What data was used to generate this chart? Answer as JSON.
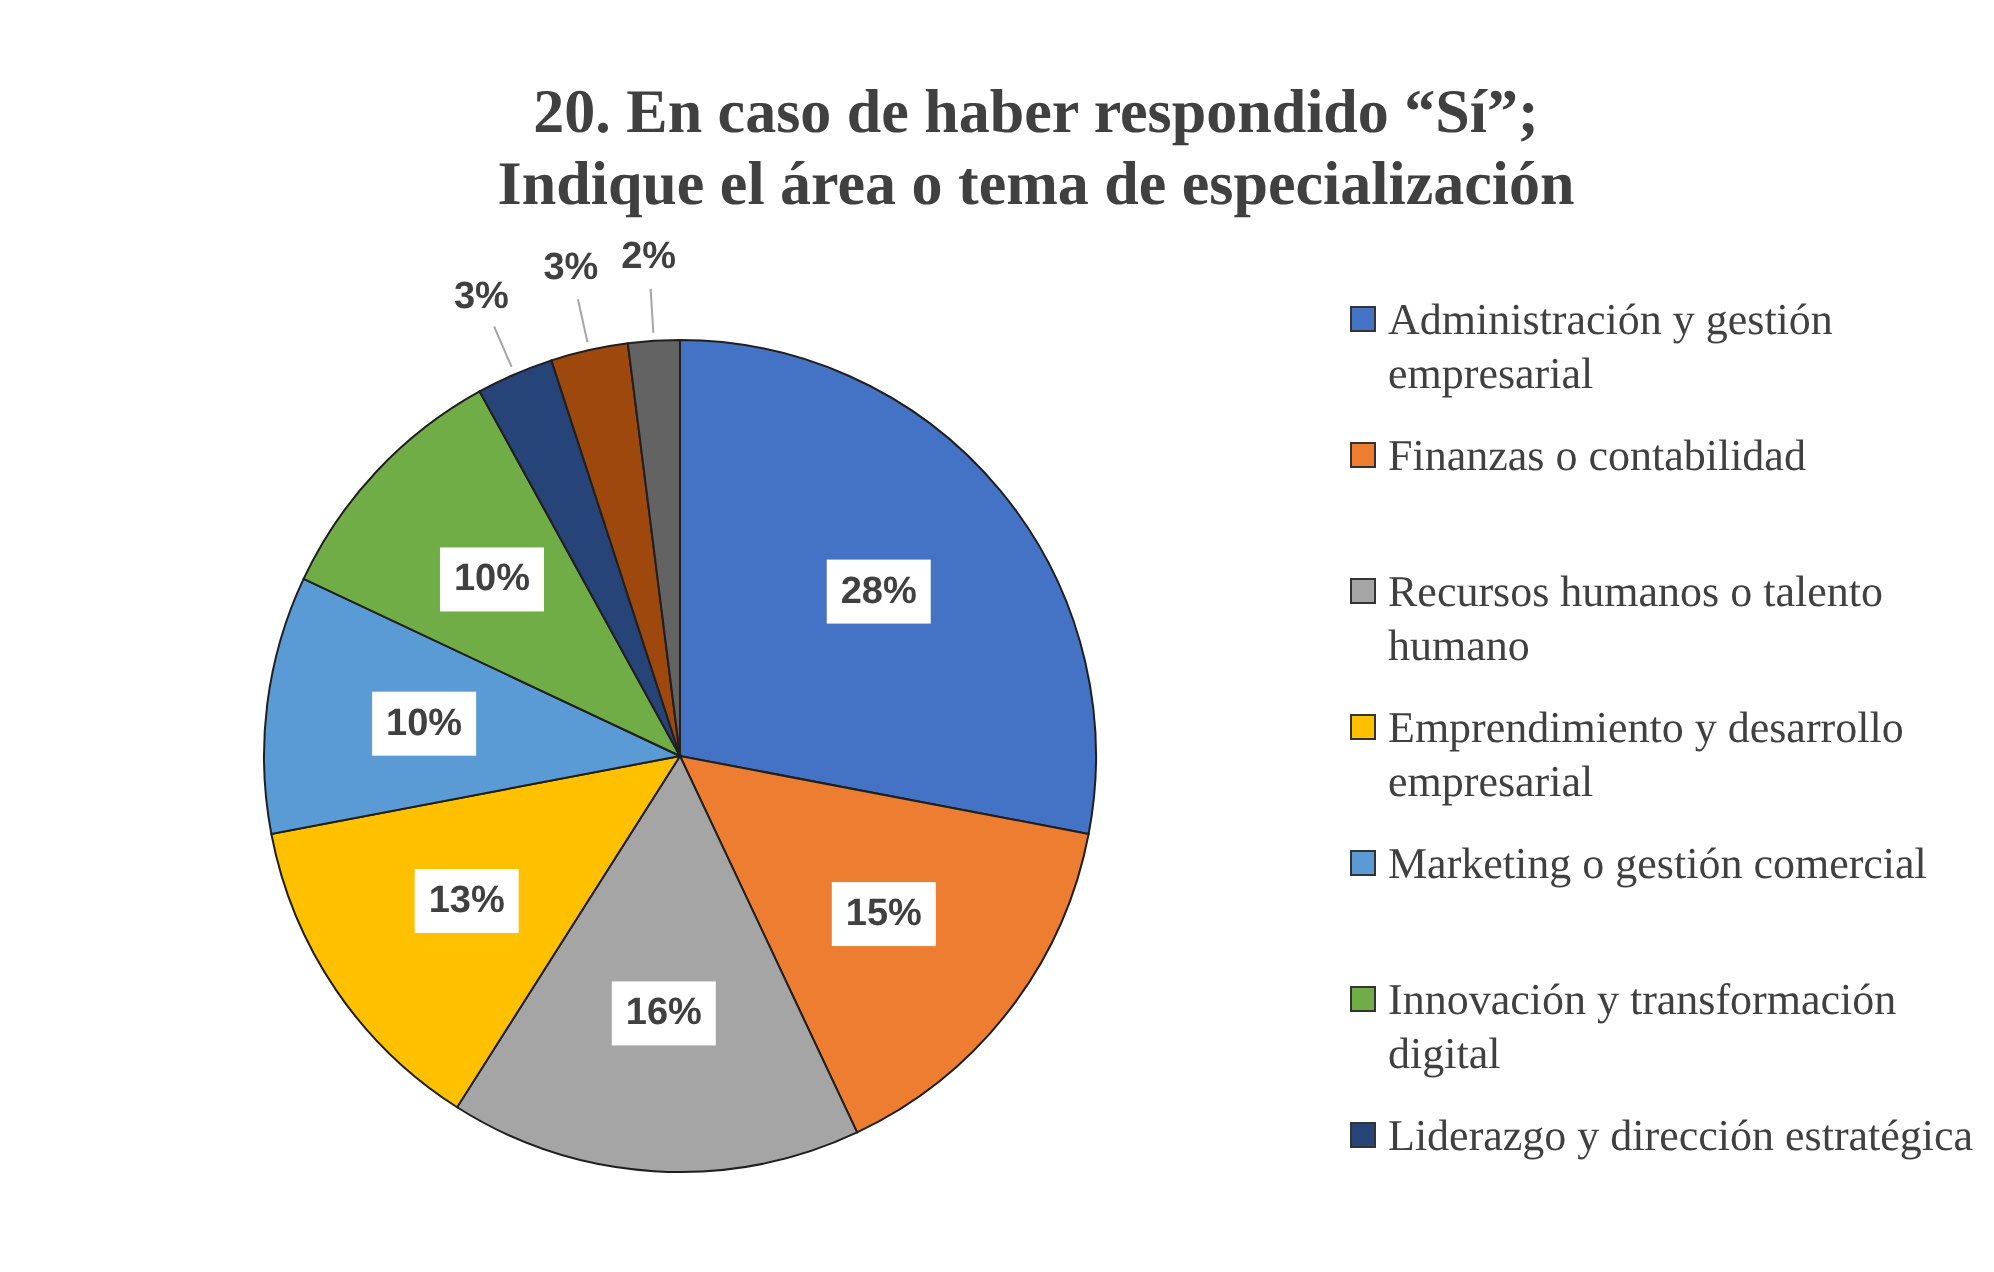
{
  "chart_data": {
    "type": "pie",
    "title": "20. En caso de haber respondido “Sí”; Indique el área o tema de especialización",
    "categories": [
      "Administración y gestión empresarial",
      "Finanzas o contabilidad",
      "Recursos humanos o talento humano",
      "Emprendimiento y desarrollo empresarial",
      "Marketing o gestión comercial",
      "Innovación y transformación digital",
      "Liderazgo y dirección estratégica",
      null,
      null
    ],
    "values": [
      28,
      15,
      16,
      13,
      10,
      10,
      3,
      3,
      2
    ],
    "value_labels": [
      "28%",
      "15%",
      "16%",
      "13%",
      "10%",
      "10%",
      "3%",
      "3%",
      "2%"
    ],
    "colors": [
      "#4472c4",
      "#ed7d31",
      "#a5a5a5",
      "#ffc000",
      "#5b9bd5",
      "#70ad47",
      "#264478",
      "#9e480e",
      "#636363"
    ],
    "legend": "right"
  }
}
